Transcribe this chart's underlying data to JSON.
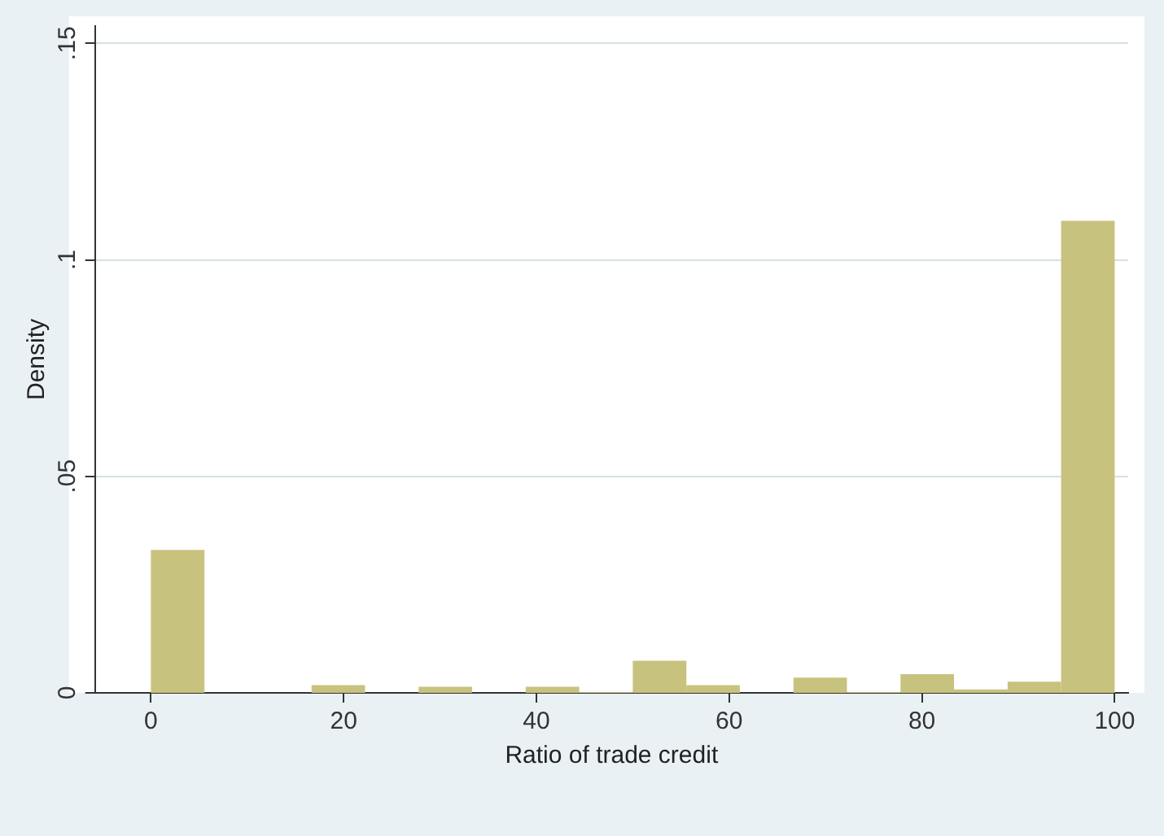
{
  "chart_data": {
    "type": "histogram",
    "xlabel": "Ratio of trade credit",
    "ylabel": "Density",
    "bins": [
      0,
      5.56,
      11.11,
      16.67,
      22.22,
      27.78,
      33.33,
      38.89,
      44.44,
      50,
      55.56,
      61.11,
      66.67,
      72.22,
      77.78,
      83.33,
      88.89,
      94.44,
      100
    ],
    "values": [
      0.033,
      0,
      0,
      0.0018,
      0,
      0.0014,
      0,
      0.0014,
      0.0002,
      0.0074,
      0.0018,
      0,
      0.0035,
      0.0002,
      0.0043,
      0.0008,
      0.0026,
      0.109
    ],
    "color": "#c8c27f",
    "xlim": [
      -5.8,
      101.4
    ],
    "xticks": [
      0,
      20,
      40,
      60,
      80,
      100
    ],
    "ylim": [
      0,
      0.154
    ],
    "yticks": [
      {
        "value": 0,
        "label": "0"
      },
      {
        "value": 0.05,
        "label": ".05"
      },
      {
        "value": 0.1,
        "label": ".1"
      },
      {
        "value": 0.15,
        "label": ".15"
      }
    ],
    "grid": "y",
    "legend": false
  }
}
